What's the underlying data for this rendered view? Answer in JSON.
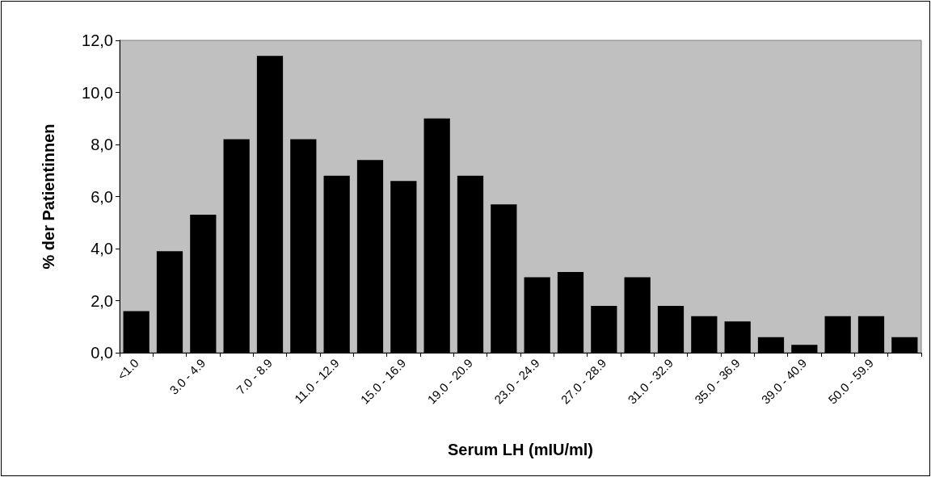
{
  "chart_data": {
    "type": "bar",
    "xlabel": "Serum LH (mIU/ml)",
    "ylabel": "% der Patientinnen",
    "categories": [
      "<1.0",
      null,
      "3.0 - 4.9",
      null,
      "7.0 - 8.9",
      null,
      "11.0 - 12.9",
      null,
      "15.0 - 16.9",
      null,
      "19.0 - 20.9",
      null,
      "23.0 - 24.9",
      null,
      "27.0 - 28.9",
      null,
      "31.0 - 32.9",
      null,
      "35.0 - 36.9",
      null,
      "39.0 - 40.9",
      null,
      "50.0 - 59.9",
      null
    ],
    "values": [
      1.6,
      3.9,
      5.3,
      8.2,
      11.4,
      8.2,
      6.8,
      7.4,
      6.6,
      9.0,
      6.8,
      5.7,
      2.9,
      3.1,
      1.8,
      2.9,
      1.8,
      1.4,
      1.2,
      0.6,
      0.3,
      1.4,
      1.4,
      0.6
    ],
    "color": "#000000",
    "ylim": [
      0,
      12
    ],
    "yticks": [
      {
        "value": 0,
        "label": "0,0"
      },
      {
        "value": 2,
        "label": "2,0"
      },
      {
        "value": 4,
        "label": "4,0"
      },
      {
        "value": 6,
        "label": "6,0"
      },
      {
        "value": 8,
        "label": "8,0"
      },
      {
        "value": 10,
        "label": "10,0"
      },
      {
        "value": 12,
        "label": "12,0"
      }
    ],
    "grid": false
  }
}
